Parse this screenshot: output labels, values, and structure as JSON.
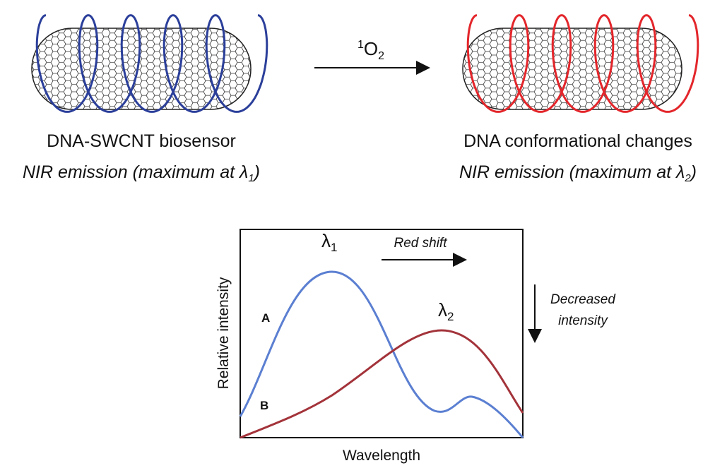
{
  "left": {
    "caption": "DNA-SWCNT biosensor",
    "emission": {
      "text": "NIR emission (maximum at ",
      "symbol": "λ",
      "subscript": "1",
      "close": ")"
    }
  },
  "reaction": {
    "superscript": "1",
    "base": "O",
    "subscript": "2"
  },
  "right": {
    "caption": "DNA conformational changes",
    "emission": {
      "text": "NIR emission (maximum at ",
      "symbol": "λ",
      "subscript": "2",
      "close": ")"
    }
  },
  "spectrum": {
    "y_label": "Relative intensity",
    "x_label": "Wavelength",
    "peak1": {
      "symbol": "λ",
      "subscript": "1"
    },
    "peak2": {
      "symbol": "λ",
      "subscript": "2"
    },
    "curve_a": "A",
    "curve_b": "B",
    "shift_label": "Red shift",
    "intensity_label": [
      "Decreased",
      "intensity"
    ]
  }
}
